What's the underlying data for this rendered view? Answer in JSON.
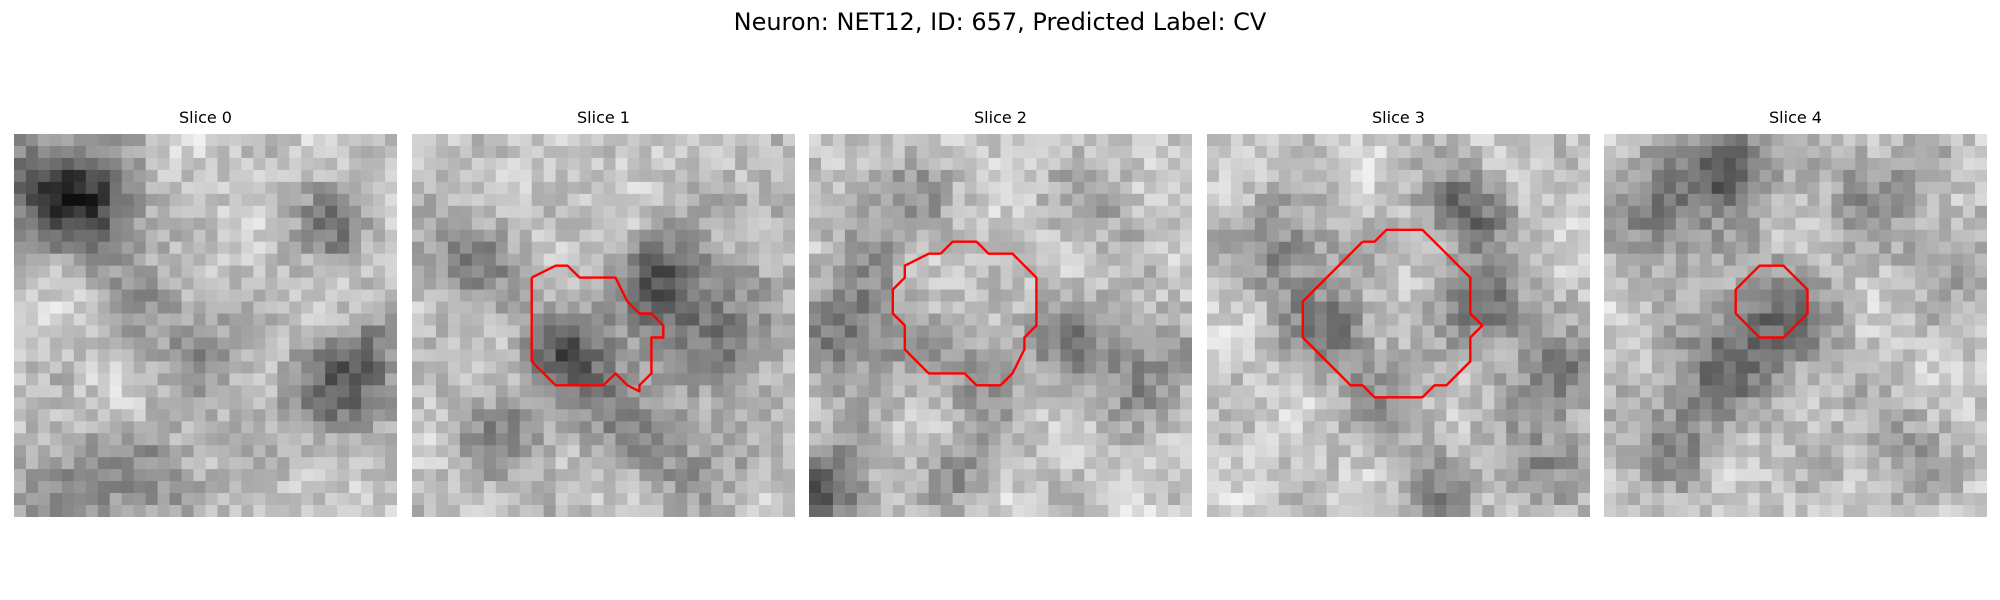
{
  "figure": {
    "title": "Neuron: NET12, ID: 657, Predicted Label: CV"
  },
  "panels": [
    {
      "label": "Slice 0",
      "contour": false
    },
    {
      "label": "Slice 1",
      "contour": true
    },
    {
      "label": "Slice 2",
      "contour": true
    },
    {
      "label": "Slice 3",
      "contour": true
    },
    {
      "label": "Slice 4",
      "contour": true
    }
  ],
  "colors": {
    "contour": "#ff0000",
    "background": "#ffffff"
  }
}
